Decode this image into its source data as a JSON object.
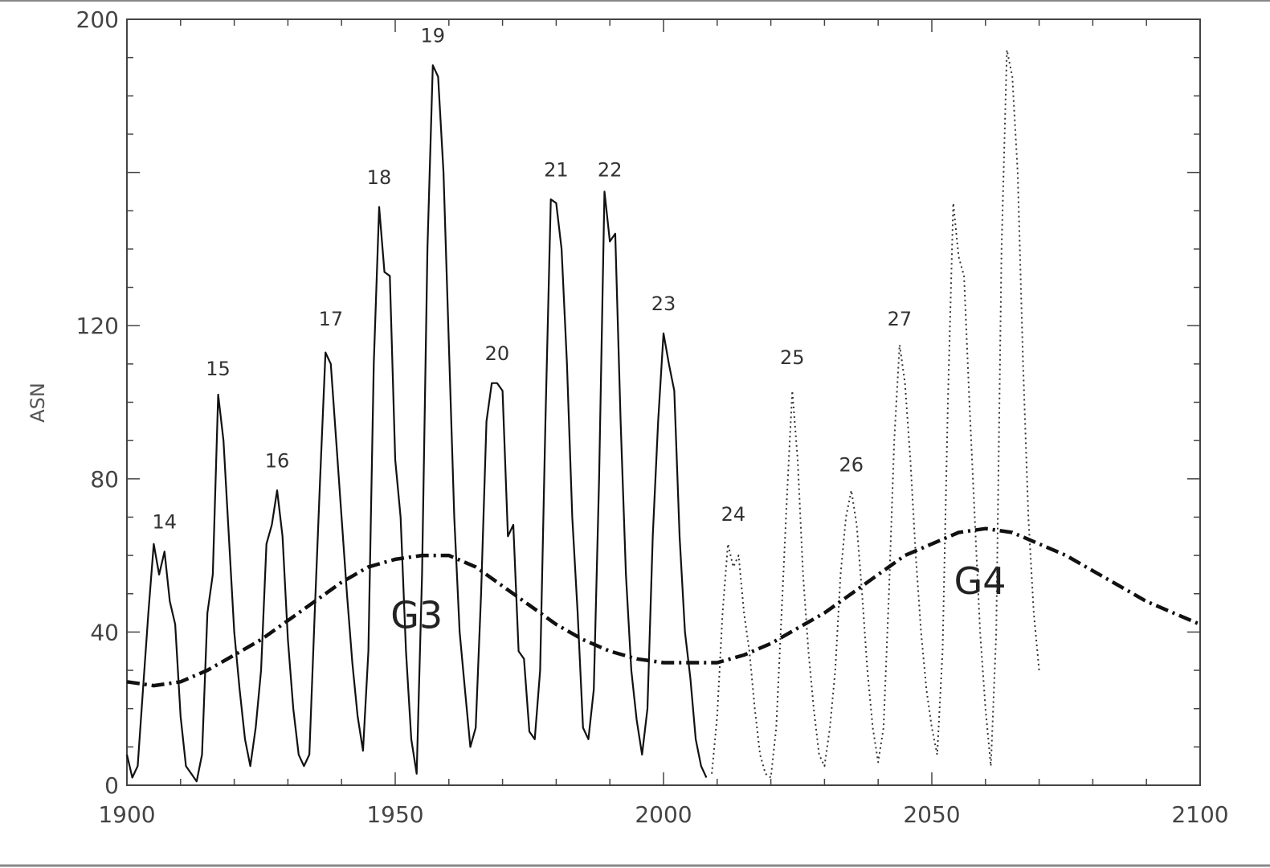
{
  "chart_data": {
    "type": "line",
    "xlabel": "",
    "ylabel": "ASN",
    "xlim": [
      1900,
      2100
    ],
    "ylim": [
      0,
      200
    ],
    "x_ticks": [
      1900,
      1950,
      2000,
      2050,
      2100
    ],
    "y_ticks": [
      0,
      40,
      80,
      120,
      200
    ],
    "grid": false,
    "series": [
      {
        "style": "solid",
        "points": [
          [
            1900,
            8
          ],
          [
            1901,
            2
          ],
          [
            1902,
            5
          ],
          [
            1903,
            25
          ],
          [
            1904,
            45
          ],
          [
            1905,
            63
          ],
          [
            1906,
            55
          ],
          [
            1907,
            61
          ],
          [
            1908,
            48
          ],
          [
            1909,
            42
          ],
          [
            1910,
            18
          ],
          [
            1911,
            5
          ],
          [
            1912,
            3
          ],
          [
            1913,
            1
          ],
          [
            1914,
            8
          ],
          [
            1915,
            45
          ],
          [
            1916,
            55
          ],
          [
            1917,
            102
          ],
          [
            1918,
            90
          ],
          [
            1919,
            65
          ],
          [
            1920,
            40
          ],
          [
            1921,
            25
          ],
          [
            1922,
            12
          ],
          [
            1923,
            5
          ],
          [
            1924,
            15
          ],
          [
            1925,
            30
          ],
          [
            1926,
            63
          ],
          [
            1927,
            68
          ],
          [
            1928,
            77
          ],
          [
            1929,
            65
          ],
          [
            1930,
            38
          ],
          [
            1931,
            20
          ],
          [
            1932,
            8
          ],
          [
            1933,
            5
          ],
          [
            1934,
            8
          ],
          [
            1935,
            45
          ],
          [
            1936,
            80
          ],
          [
            1937,
            113
          ],
          [
            1938,
            110
          ],
          [
            1939,
            90
          ],
          [
            1940,
            70
          ],
          [
            1941,
            50
          ],
          [
            1942,
            32
          ],
          [
            1943,
            18
          ],
          [
            1944,
            9
          ],
          [
            1945,
            35
          ],
          [
            1946,
            110
          ],
          [
            1947,
            151
          ],
          [
            1948,
            134
          ],
          [
            1949,
            133
          ],
          [
            1950,
            85
          ],
          [
            1951,
            70
          ],
          [
            1952,
            35
          ],
          [
            1953,
            12
          ],
          [
            1954,
            3
          ],
          [
            1955,
            55
          ],
          [
            1956,
            140
          ],
          [
            1957,
            188
          ],
          [
            1958,
            185
          ],
          [
            1959,
            160
          ],
          [
            1960,
            115
          ],
          [
            1961,
            70
          ],
          [
            1962,
            40
          ],
          [
            1963,
            25
          ],
          [
            1964,
            10
          ],
          [
            1965,
            15
          ],
          [
            1966,
            50
          ],
          [
            1967,
            95
          ],
          [
            1968,
            105
          ],
          [
            1969,
            105
          ],
          [
            1970,
            103
          ],
          [
            1971,
            65
          ],
          [
            1972,
            68
          ],
          [
            1973,
            35
          ],
          [
            1974,
            33
          ],
          [
            1975,
            14
          ],
          [
            1976,
            12
          ],
          [
            1977,
            30
          ],
          [
            1978,
            95
          ],
          [
            1979,
            153
          ],
          [
            1980,
            152
          ],
          [
            1981,
            140
          ],
          [
            1982,
            110
          ],
          [
            1983,
            70
          ],
          [
            1984,
            45
          ],
          [
            1985,
            15
          ],
          [
            1986,
            12
          ],
          [
            1987,
            25
          ],
          [
            1988,
            80
          ],
          [
            1989,
            155
          ],
          [
            1990,
            142
          ],
          [
            1991,
            144
          ],
          [
            1992,
            95
          ],
          [
            1993,
            55
          ],
          [
            1994,
            30
          ],
          [
            1995,
            17
          ],
          [
            1996,
            8
          ],
          [
            1997,
            20
          ],
          [
            1998,
            65
          ],
          [
            1999,
            95
          ],
          [
            2000,
            118
          ],
          [
            2001,
            110
          ],
          [
            2002,
            103
          ],
          [
            2003,
            65
          ],
          [
            2004,
            40
          ],
          [
            2005,
            28
          ],
          [
            2006,
            12
          ],
          [
            2007,
            5
          ],
          [
            2008,
            2
          ]
        ]
      },
      {
        "style": "dotted",
        "points": [
          [
            2009,
            3
          ],
          [
            2010,
            18
          ],
          [
            2011,
            45
          ],
          [
            2012,
            63
          ],
          [
            2013,
            57
          ],
          [
            2014,
            60
          ],
          [
            2015,
            45
          ],
          [
            2016,
            35
          ],
          [
            2017,
            20
          ],
          [
            2018,
            8
          ],
          [
            2019,
            3
          ],
          [
            2020,
            2
          ],
          [
            2021,
            15
          ],
          [
            2022,
            45
          ],
          [
            2023,
            75
          ],
          [
            2024,
            103
          ],
          [
            2025,
            85
          ],
          [
            2026,
            55
          ],
          [
            2027,
            35
          ],
          [
            2028,
            20
          ],
          [
            2029,
            8
          ],
          [
            2030,
            5
          ],
          [
            2031,
            15
          ],
          [
            2032,
            30
          ],
          [
            2033,
            55
          ],
          [
            2034,
            70
          ],
          [
            2035,
            77
          ],
          [
            2036,
            68
          ],
          [
            2037,
            50
          ],
          [
            2038,
            30
          ],
          [
            2039,
            15
          ],
          [
            2040,
            6
          ],
          [
            2041,
            15
          ],
          [
            2042,
            50
          ],
          [
            2043,
            90
          ],
          [
            2044,
            115
          ],
          [
            2045,
            105
          ],
          [
            2046,
            85
          ],
          [
            2047,
            60
          ],
          [
            2048,
            40
          ],
          [
            2049,
            25
          ],
          [
            2050,
            15
          ],
          [
            2051,
            8
          ],
          [
            2052,
            35
          ],
          [
            2053,
            100
          ],
          [
            2054,
            152
          ],
          [
            2055,
            138
          ],
          [
            2056,
            133
          ],
          [
            2057,
            100
          ],
          [
            2058,
            70
          ],
          [
            2059,
            40
          ],
          [
            2060,
            20
          ],
          [
            2061,
            5
          ],
          [
            2062,
            40
          ],
          [
            2063,
            140
          ],
          [
            2064,
            192
          ],
          [
            2065,
            185
          ],
          [
            2066,
            160
          ],
          [
            2067,
            110
          ],
          [
            2068,
            70
          ],
          [
            2069,
            45
          ],
          [
            2070,
            30
          ]
        ]
      },
      {
        "style": "dash-dot",
        "points": [
          [
            1900,
            27
          ],
          [
            1905,
            26
          ],
          [
            1910,
            27
          ],
          [
            1915,
            30
          ],
          [
            1920,
            34
          ],
          [
            1925,
            38
          ],
          [
            1930,
            43
          ],
          [
            1935,
            48
          ],
          [
            1940,
            53
          ],
          [
            1945,
            57
          ],
          [
            1950,
            59
          ],
          [
            1955,
            60
          ],
          [
            1960,
            60
          ],
          [
            1965,
            57
          ],
          [
            1970,
            52
          ],
          [
            1975,
            47
          ],
          [
            1980,
            42
          ],
          [
            1985,
            38
          ],
          [
            1990,
            35
          ],
          [
            1995,
            33
          ],
          [
            2000,
            32
          ],
          [
            2005,
            32
          ],
          [
            2010,
            32
          ],
          [
            2015,
            34
          ],
          [
            2020,
            37
          ],
          [
            2025,
            41
          ],
          [
            2030,
            45
          ],
          [
            2035,
            50
          ],
          [
            2040,
            55
          ],
          [
            2045,
            60
          ],
          [
            2050,
            63
          ],
          [
            2055,
            66
          ],
          [
            2060,
            67
          ],
          [
            2065,
            66
          ],
          [
            2070,
            63
          ],
          [
            2075,
            60
          ],
          [
            2080,
            56
          ],
          [
            2085,
            52
          ],
          [
            2090,
            48
          ],
          [
            2095,
            45
          ],
          [
            2100,
            42
          ]
        ]
      }
    ],
    "cycle_labels": [
      {
        "text": "14",
        "x": 1907,
        "y": 67
      },
      {
        "text": "15",
        "x": 1917,
        "y": 107
      },
      {
        "text": "16",
        "x": 1928,
        "y": 83
      },
      {
        "text": "17",
        "x": 1938,
        "y": 120
      },
      {
        "text": "18",
        "x": 1947,
        "y": 157
      },
      {
        "text": "19",
        "x": 1957,
        "y": 194
      },
      {
        "text": "20",
        "x": 1969,
        "y": 111
      },
      {
        "text": "21",
        "x": 1980,
        "y": 159
      },
      {
        "text": "22",
        "x": 1990,
        "y": 159
      },
      {
        "text": "23",
        "x": 2000,
        "y": 124
      },
      {
        "text": "24",
        "x": 2013,
        "y": 69
      },
      {
        "text": "25",
        "x": 2024,
        "y": 110
      },
      {
        "text": "26",
        "x": 2035,
        "y": 82
      },
      {
        "text": "27",
        "x": 2044,
        "y": 120
      }
    ],
    "envelope_labels": [
      {
        "text": "G3",
        "x": 1954,
        "y": 41
      },
      {
        "text": "G4",
        "x": 2059,
        "y": 50
      }
    ]
  }
}
